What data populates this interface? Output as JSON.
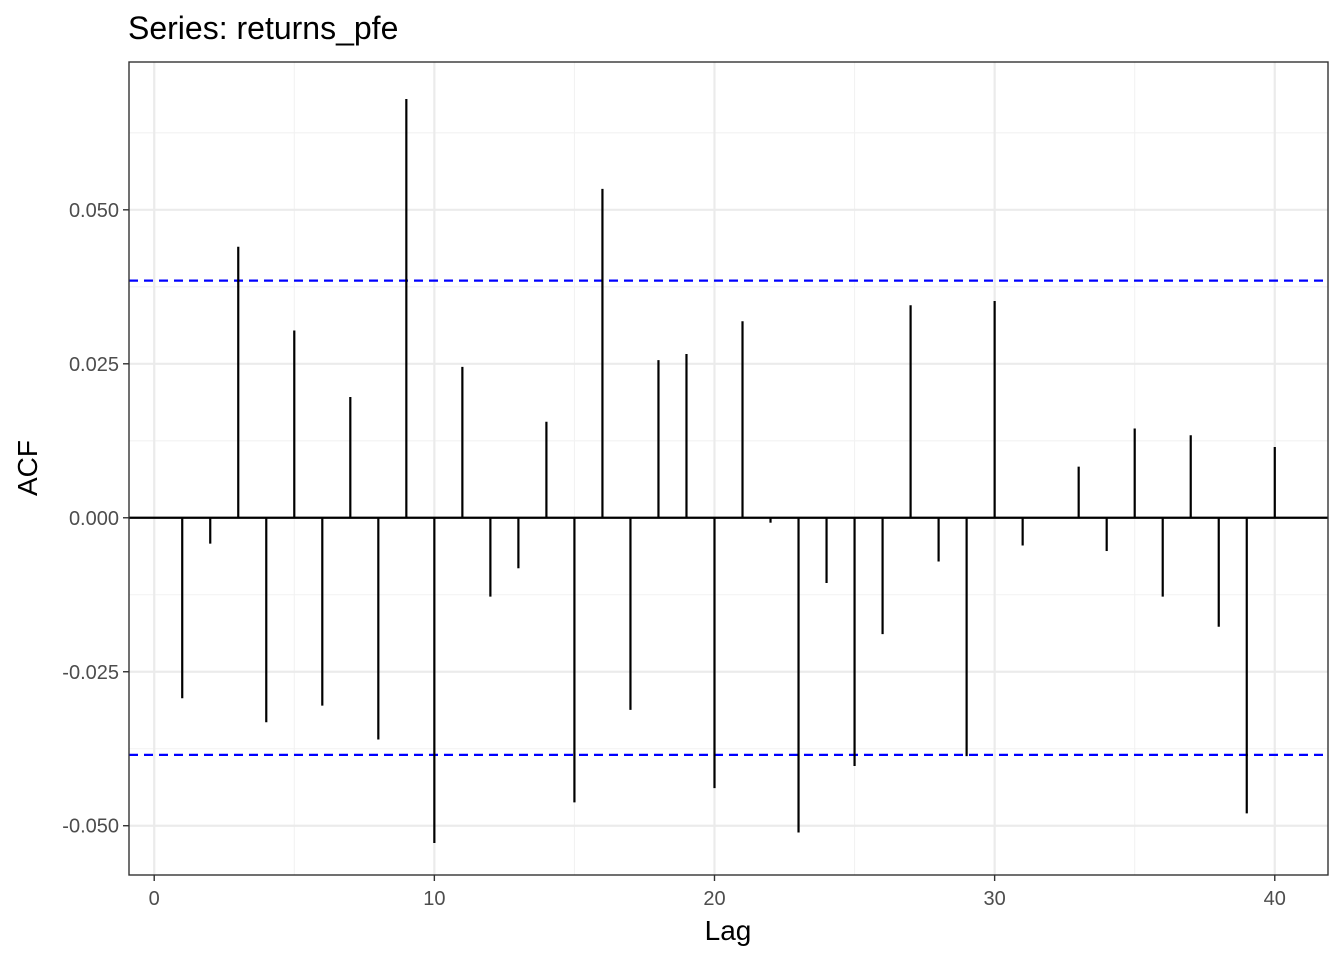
{
  "chart_data": {
    "type": "bar",
    "title": "Series: returns_pfe",
    "xlabel": "Lag",
    "ylabel": "ACF",
    "xlim": [
      -0.9,
      41.9
    ],
    "ylim": [
      -0.058,
      0.074
    ],
    "x_ticks": [
      0,
      10,
      20,
      30,
      40
    ],
    "x_tick_labels": [
      "0",
      "10",
      "20",
      "30",
      "40"
    ],
    "y_ticks": [
      -0.05,
      -0.025,
      0,
      0.025,
      0.05
    ],
    "y_tick_labels": [
      "-0.050",
      "-0.025",
      "0.000",
      "0.025",
      "0.050"
    ],
    "grid": true,
    "confidence_bound": 0.0385,
    "lags": [
      1,
      2,
      3,
      4,
      5,
      6,
      7,
      8,
      9,
      10,
      11,
      12,
      13,
      14,
      15,
      16,
      17,
      18,
      19,
      20,
      21,
      22,
      23,
      24,
      25,
      26,
      27,
      28,
      29,
      30,
      31,
      32,
      33,
      34,
      35,
      36,
      37,
      38,
      39,
      40
    ],
    "values": [
      -0.0293,
      -0.0042,
      0.044,
      -0.0332,
      0.0304,
      -0.0305,
      0.0196,
      -0.036,
      0.068,
      -0.0528,
      0.0245,
      -0.0128,
      -0.0082,
      0.0156,
      -0.0462,
      0.0534,
      -0.0312,
      0.0256,
      0.0266,
      -0.0439,
      0.0319,
      -0.0008,
      -0.0511,
      -0.0106,
      -0.0403,
      -0.0189,
      0.0345,
      -0.0071,
      -0.0387,
      0.0352,
      -0.0045,
      0.0001,
      0.0083,
      -0.0054,
      0.0145,
      -0.0128,
      0.0134,
      -0.0177,
      -0.048,
      0.0115
    ],
    "colors": {
      "stem": "#000000",
      "confidence": "#0000ff",
      "grid_major": "#ebebeb",
      "grid_minor": "#f2f2f2",
      "panel_border": "#333333"
    }
  }
}
